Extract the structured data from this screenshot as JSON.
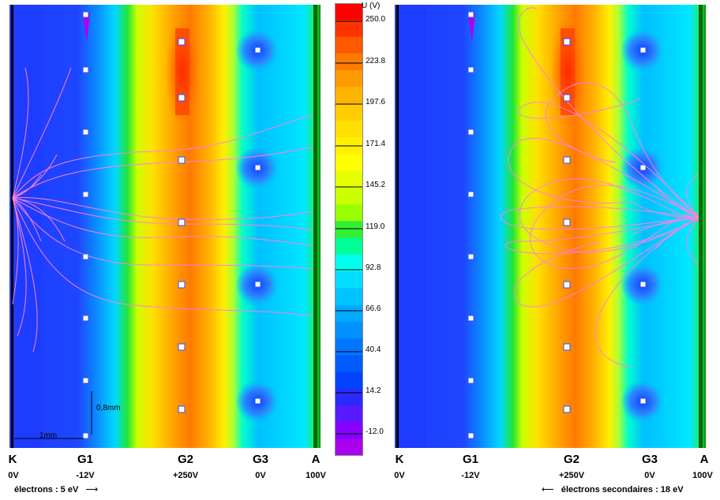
{
  "left_panel": {
    "electrodes": [
      {
        "name": "K",
        "voltage": "0V"
      },
      {
        "name": "G1",
        "voltage": "-12V"
      },
      {
        "name": "G2",
        "voltage": "+250V"
      },
      {
        "name": "G3",
        "voltage": "0V"
      },
      {
        "name": "A",
        "voltage": "100V"
      }
    ],
    "caption": "électrons : 5 eV",
    "caption_arrow": "⟶",
    "dim_horizontal": "1mm",
    "dim_vertical": "0,8mm"
  },
  "right_panel": {
    "electrodes": [
      {
        "name": "K",
        "voltage": "0V"
      },
      {
        "name": "G1",
        "voltage": "-12V"
      },
      {
        "name": "G2",
        "voltage": "+250V"
      },
      {
        "name": "G3",
        "voltage": "0V"
      },
      {
        "name": "A",
        "voltage": "100V"
      }
    ],
    "caption": "électrons secondaires : 18 eV",
    "caption_arrow": "⟵"
  },
  "color_scale": {
    "unit_label": "U (V)",
    "ticks": [
      "250.0",
      "223.8",
      "197.6",
      "171.4",
      "145.2",
      "119.0",
      "92.8",
      "66.6",
      "40.4",
      "14.2",
      "-12.0"
    ],
    "colors": [
      "#ff0000",
      "#ff3300",
      "#ff5a00",
      "#ff7a00",
      "#ff9a00",
      "#ffb400",
      "#ffcc00",
      "#ffe000",
      "#fff000",
      "#ffff00",
      "#e6ff00",
      "#ccff00",
      "#99ff00",
      "#33ee33",
      "#00ff99",
      "#00ffee",
      "#00ddff",
      "#00c4ff",
      "#00aaff",
      "#0090ff",
      "#0077ff",
      "#005cff",
      "#0044ff",
      "#2a2aff",
      "#5a1aff",
      "#8800ff",
      "#aa00ee"
    ]
  }
}
